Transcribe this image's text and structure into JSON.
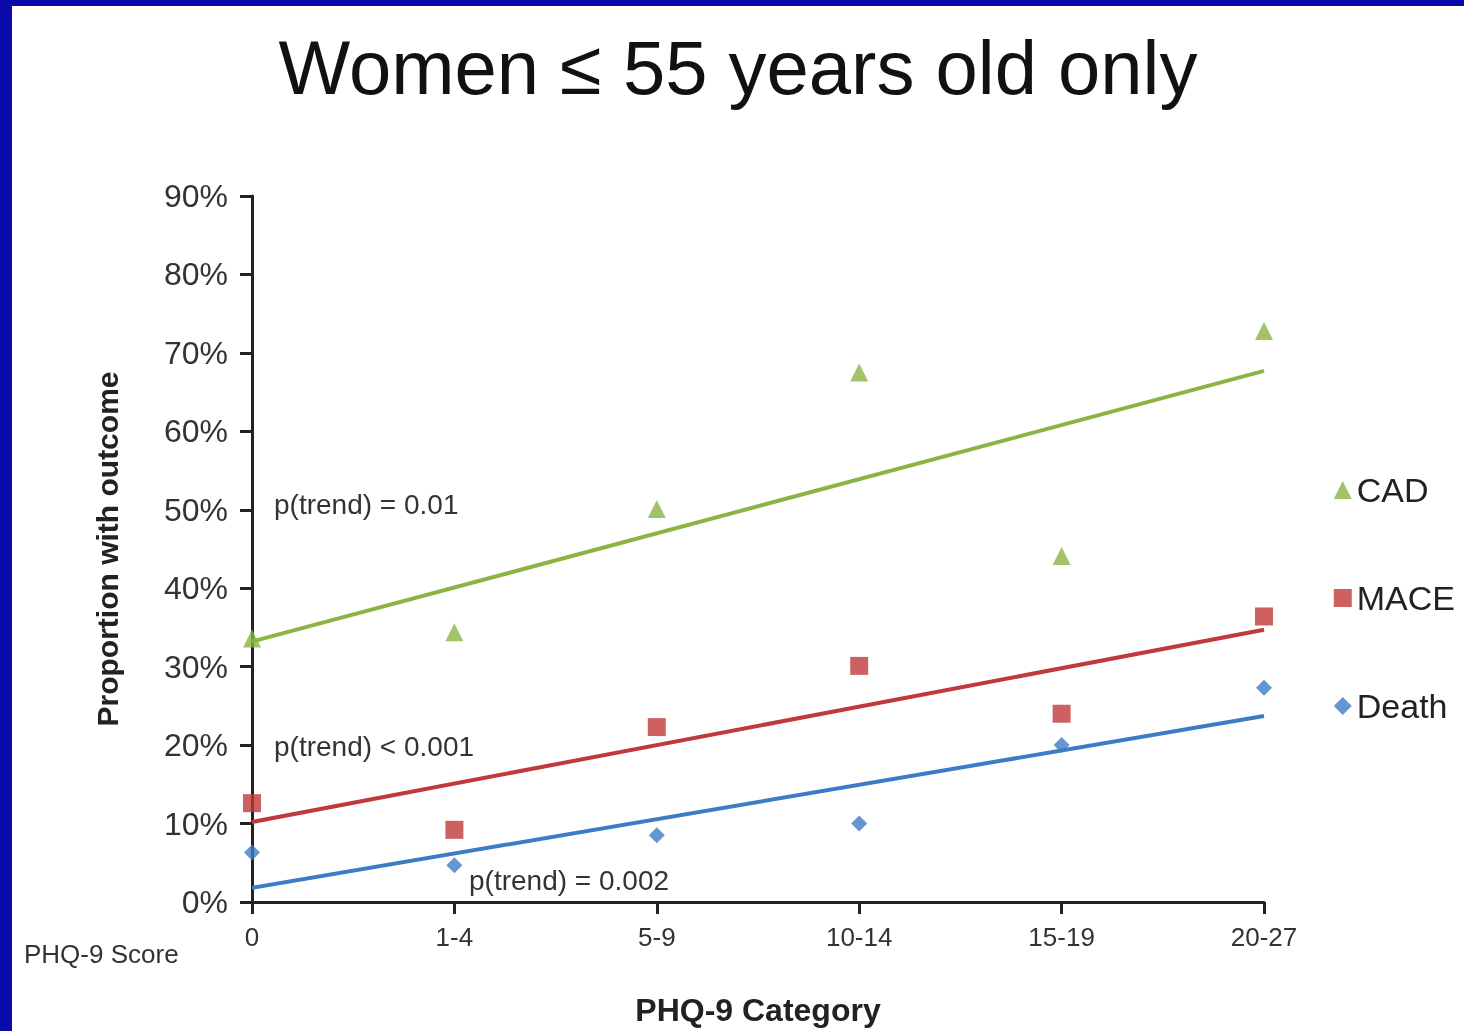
{
  "chart_data": {
    "type": "scatter",
    "title": "Women ≤ 55 years old only",
    "xlabel": "PHQ-9 Category",
    "ylabel": "Proportion with outcome",
    "categories": [
      "0",
      "1-4",
      "5-9",
      "10-14",
      "15-19",
      "20-27"
    ],
    "series": [
      {
        "name": "CAD",
        "marker": "triangle",
        "color": "#8cb443",
        "values": [
          33.6,
          34.4,
          50.1,
          67.5,
          44.1,
          72.8
        ]
      },
      {
        "name": "MACE",
        "marker": "square",
        "color": "#c0393b",
        "values": [
          12.6,
          9.2,
          22.3,
          30.1,
          24.0,
          36.4
        ]
      },
      {
        "name": "Death",
        "marker": "diamond",
        "color": "#3d7cc4",
        "values": [
          6.3,
          4.7,
          8.5,
          10.0,
          20.0,
          27.3
        ]
      },
      {
        "type": "line",
        "marker": "none",
        "color": "#8cb443",
        "x": [
          "0",
          "20-27"
        ],
        "values": [
          33.2,
          67.7
        ]
      },
      {
        "type": "line",
        "marker": "none",
        "color": "#c0393b",
        "x": [
          "0",
          "20-27"
        ],
        "values": [
          10.2,
          34.7
        ]
      },
      {
        "type": "line",
        "marker": "none",
        "color": "#3d7cc4",
        "x": [
          "0",
          "20-27"
        ],
        "values": [
          1.8,
          23.7
        ]
      }
    ],
    "ylim": [
      0,
      90
    ],
    "yticks": [
      {
        "value": 0,
        "label": "0%"
      },
      {
        "value": 10,
        "label": "10%"
      },
      {
        "value": 20,
        "label": "20%"
      },
      {
        "value": 30,
        "label": "30%"
      },
      {
        "value": 40,
        "label": "40%"
      },
      {
        "value": 50,
        "label": "50%"
      },
      {
        "value": 60,
        "label": "60%"
      },
      {
        "value": 70,
        "label": "70%"
      },
      {
        "value": 80,
        "label": "80%"
      },
      {
        "value": 90,
        "label": "90%"
      }
    ],
    "grid": false,
    "legend": "right",
    "annotations": [
      "p(trend) = 0.01",
      "p(trend) < 0.001",
      "p(trend) = 0.002",
      "PHQ-9 Score"
    ]
  }
}
